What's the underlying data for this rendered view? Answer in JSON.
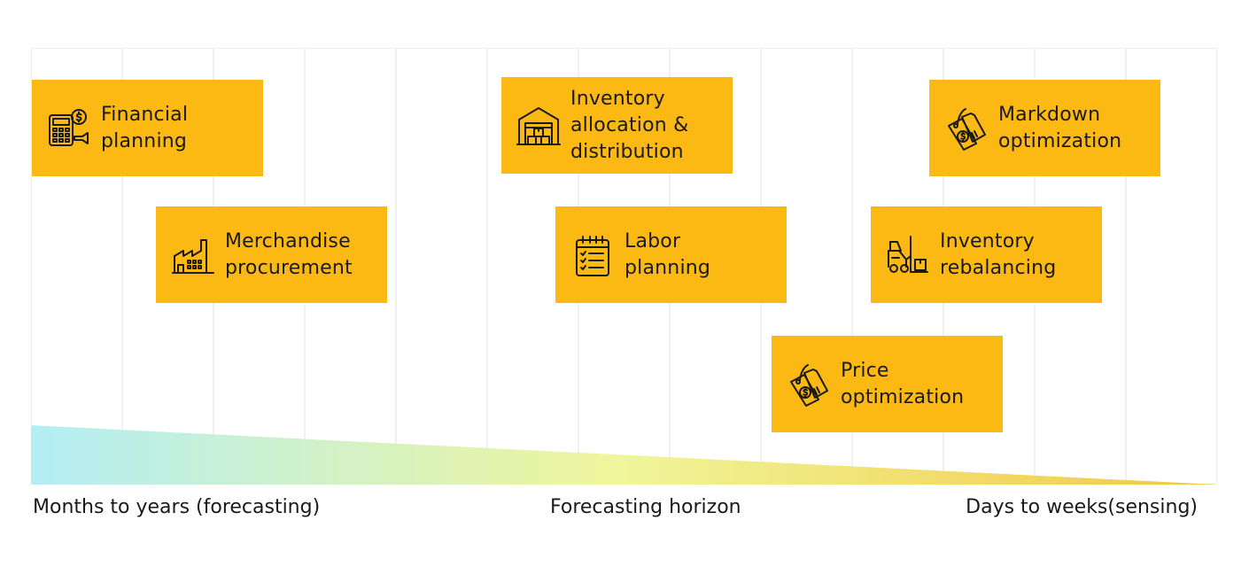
{
  "cards": [
    {
      "label": "Financial\nplanning",
      "icon": "calculator-coin-icon"
    },
    {
      "label": "Merchandise\nprocurement",
      "icon": "factory-icon"
    },
    {
      "label": "Inventory\nallocation &\ndistribution",
      "icon": "warehouse-icon"
    },
    {
      "label": "Labor\nplanning",
      "icon": "clipboard-checklist-icon"
    },
    {
      "label": "Markdown\noptimization",
      "icon": "price-tag-icon"
    },
    {
      "label": "Inventory\nrebalancing",
      "icon": "forklift-icon"
    },
    {
      "label": "Price\noptimization",
      "icon": "price-tag-icon"
    }
  ],
  "axis": {
    "left": "Months to years (forecasting)",
    "center": "Forecasting horizon",
    "right": "Days to weeks(sensing)"
  },
  "colors": {
    "card": "#FDB913",
    "gradient_start": "#B3EEF5",
    "gradient_mid": "#F0F59A",
    "gradient_end": "#F3C842"
  }
}
